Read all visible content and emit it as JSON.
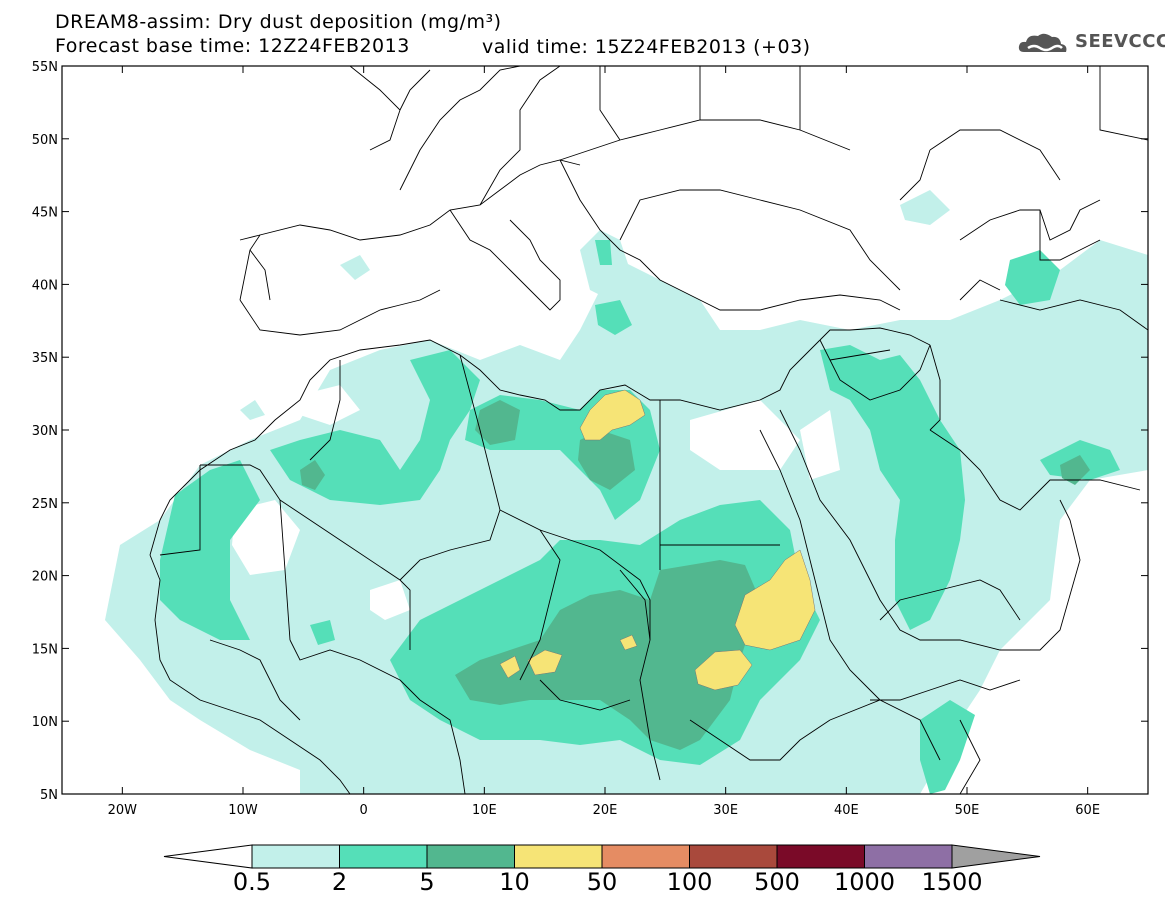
{
  "title_line1": "DREAM8-assim: Dry dust deposition (mg/m³)",
  "title_line2": "Forecast base time: 12Z24FEB2013",
  "valid_time": "valid time: 15Z24FEB2013 (+03)",
  "logo": {
    "name": "cloud-logo-icon",
    "text": "SEEVCCC"
  },
  "map": {
    "lat_ticks": [
      "55N",
      "50N",
      "45N",
      "40N",
      "35N",
      "30N",
      "25N",
      "20N",
      "15N",
      "10N",
      "5N"
    ],
    "lon_ticks": [
      "20W",
      "10W",
      "0",
      "10E",
      "20E",
      "30E",
      "40E",
      "50E",
      "60E"
    ],
    "lat_range": [
      5,
      55
    ],
    "lon_range": [
      -25,
      65
    ]
  },
  "colorbar": {
    "labels": [
      "0.5",
      "2",
      "5",
      "10",
      "50",
      "100",
      "500",
      "1000",
      "1500"
    ],
    "colors": [
      "#c2f0ea",
      "#55dfb8",
      "#52b78f",
      "#f6e476",
      "#e58c63",
      "#a9493c",
      "#7a0a28",
      "#8e6fa5"
    ],
    "underflow_color": "#ffffff",
    "overflow_color": "#a0a0a0"
  }
}
